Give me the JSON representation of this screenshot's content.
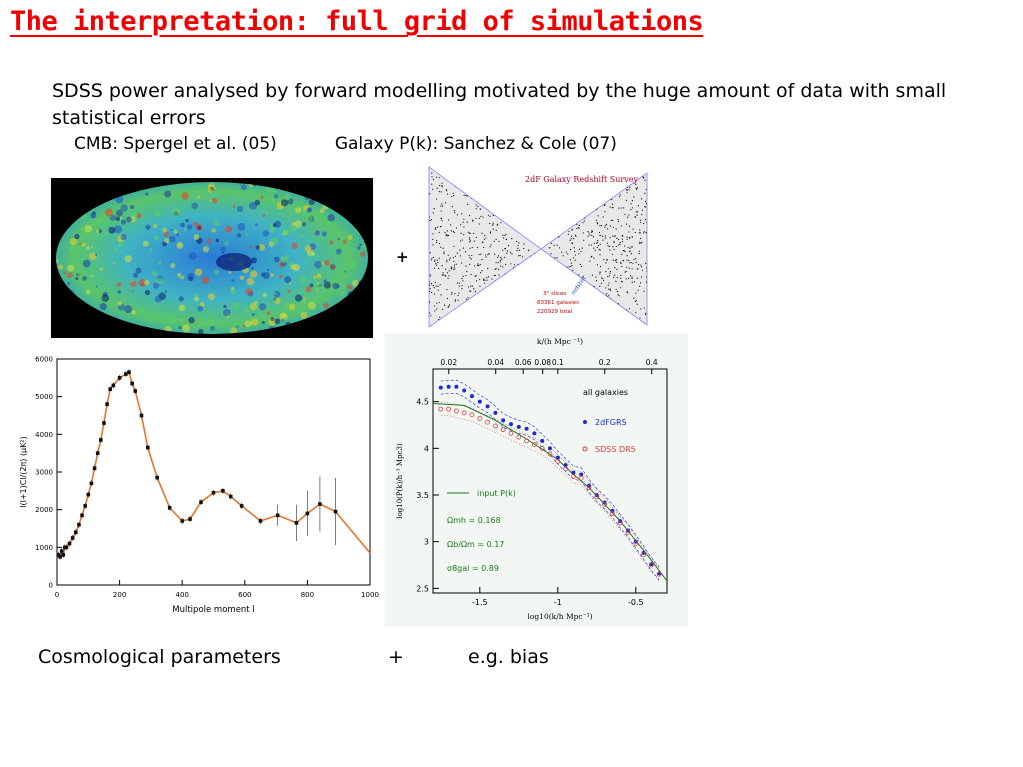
{
  "slide": {
    "title": "The interpretation: full grid of simulations",
    "paragraph": "SDSS power analysed by forward modelling motivated by the huge amount of data with small statistical  errors",
    "ref_cmb": "CMB: Spergel et al.  (05)",
    "ref_galaxy": "Galaxy P(k): Sanchez & Cole (07)",
    "plus_top": "+",
    "bottom_left": "Cosmological parameters",
    "bottom_plus": "+",
    "bottom_right": "e.g. bias"
  },
  "survey_figure": {
    "title": "2dF Galaxy Redshift Survey",
    "slices": "3° slices",
    "galaxies": "63361 galaxies",
    "total": "220929 total",
    "redshift_label": "redshift"
  },
  "chart_data": [
    {
      "type": "scatter",
      "title": "",
      "xlabel": "Multipole moment l",
      "ylabel": "l(l+1)Cl/(2π) (μK²)",
      "xlim": [
        0,
        1000
      ],
      "ylim": [
        0,
        6000
      ],
      "x_ticks": [
        "0",
        "200",
        "400",
        "600",
        "800",
        "1000"
      ],
      "y_ticks": [
        "0",
        "1000",
        "2000",
        "3000",
        "4000",
        "5000",
        "6000"
      ],
      "series": [
        {
          "x": [
            5,
            10,
            15,
            20,
            25,
            30,
            40,
            50,
            60,
            70,
            80,
            90,
            100,
            110,
            120,
            130,
            140,
            150,
            160,
            170,
            180,
            200,
            220,
            230,
            240,
            250,
            270,
            290,
            320,
            360,
            400,
            425,
            460,
            500,
            530,
            555,
            590,
            650,
            705,
            765,
            800,
            840,
            890
          ],
          "y": [
            800,
            750,
            900,
            800,
            1000,
            1000,
            1100,
            1250,
            1400,
            1600,
            1850,
            2100,
            2400,
            2700,
            3100,
            3500,
            3850,
            4300,
            4800,
            5200,
            5300,
            5500,
            5600,
            5650,
            5350,
            5150,
            4500,
            3650,
            2850,
            2050,
            1700,
            1750,
            2200,
            2450,
            2500,
            2350,
            2100,
            1700,
            1850,
            1650,
            1900,
            2150,
            1950
          ]
        }
      ],
      "grid": false
    },
    {
      "type": "line",
      "title": "",
      "xlabel": "log10(k/h Mpc⁻¹)",
      "ylabel": "log10(P(k)/h⁻³ Mpc3)",
      "top_axis_label": "k/(h Mpc ⁻¹)",
      "top_ticks": [
        "0.02",
        "0.04",
        "0.06",
        "0.08",
        "0.1",
        "0.2",
        "0.4"
      ],
      "x_ticks": [
        "-1.5",
        "-1",
        "-0.5"
      ],
      "y_ticks": [
        "2.5",
        "3",
        "3.5",
        "4",
        "4.5"
      ],
      "xlim": [
        -1.8,
        -0.3
      ],
      "ylim": [
        2.45,
        4.85
      ],
      "legend": {
        "header": "all galaxies",
        "entries": [
          "2dFGRS",
          "SDSS DR5",
          "input P(k)"
        ],
        "params": [
          "Ωmh = 0.168",
          "Ωb/Ωm = 0.17",
          "σ8gal = 0.89"
        ],
        "position": "right"
      },
      "series": [
        {
          "name": "2dFGRS",
          "color": "#1e2ad8",
          "x": [
            -1.75,
            -1.7,
            -1.65,
            -1.6,
            -1.55,
            -1.5,
            -1.45,
            -1.4,
            -1.35,
            -1.3,
            -1.25,
            -1.2,
            -1.15,
            -1.1,
            -1.05,
            -1.0,
            -0.95,
            -0.9,
            -0.85,
            -0.8,
            -0.75,
            -0.7,
            -0.65,
            -0.6,
            -0.55,
            -0.5,
            -0.45,
            -0.4,
            -0.35
          ],
          "y": [
            4.65,
            4.66,
            4.66,
            4.62,
            4.56,
            4.5,
            4.45,
            4.38,
            4.3,
            4.26,
            4.23,
            4.21,
            4.16,
            4.08,
            4.0,
            3.9,
            3.82,
            3.74,
            3.72,
            3.6,
            3.5,
            3.42,
            3.33,
            3.22,
            3.12,
            3.0,
            2.88,
            2.76,
            2.66
          ]
        },
        {
          "name": "SDSS DR5",
          "color": "#e03a3a",
          "x": [
            -1.75,
            -1.7,
            -1.65,
            -1.6,
            -1.55,
            -1.5,
            -1.45,
            -1.4,
            -1.35,
            -1.3,
            -1.25,
            -1.2,
            -1.15,
            -1.1,
            -1.05,
            -1.0,
            -0.95,
            -0.9,
            -0.85,
            -0.8,
            -0.75,
            -0.7,
            -0.65,
            -0.6,
            -0.55,
            -0.5,
            -0.45,
            -0.4,
            -0.35
          ],
          "y": [
            4.42,
            4.42,
            4.4,
            4.38,
            4.36,
            4.32,
            4.28,
            4.24,
            4.2,
            4.16,
            4.12,
            4.08,
            4.04,
            4.0,
            3.94,
            3.86,
            3.78,
            3.7,
            3.68,
            3.58,
            3.48,
            3.4,
            3.3,
            3.2,
            3.1,
            2.98,
            2.86,
            2.75,
            2.65
          ]
        },
        {
          "name": "input P(k)",
          "color": "#1a7a1a",
          "x": [
            -1.8,
            -1.6,
            -1.4,
            -1.2,
            -1.0,
            -0.9,
            -0.8,
            -0.6,
            -0.4,
            -0.3
          ],
          "y": [
            4.48,
            4.46,
            4.3,
            4.1,
            3.88,
            3.72,
            3.58,
            3.22,
            2.8,
            2.58
          ]
        }
      ]
    }
  ],
  "colors": {
    "title": "#f00000",
    "cmb_background": "#000000",
    "cl_curve": "#e8742a"
  }
}
